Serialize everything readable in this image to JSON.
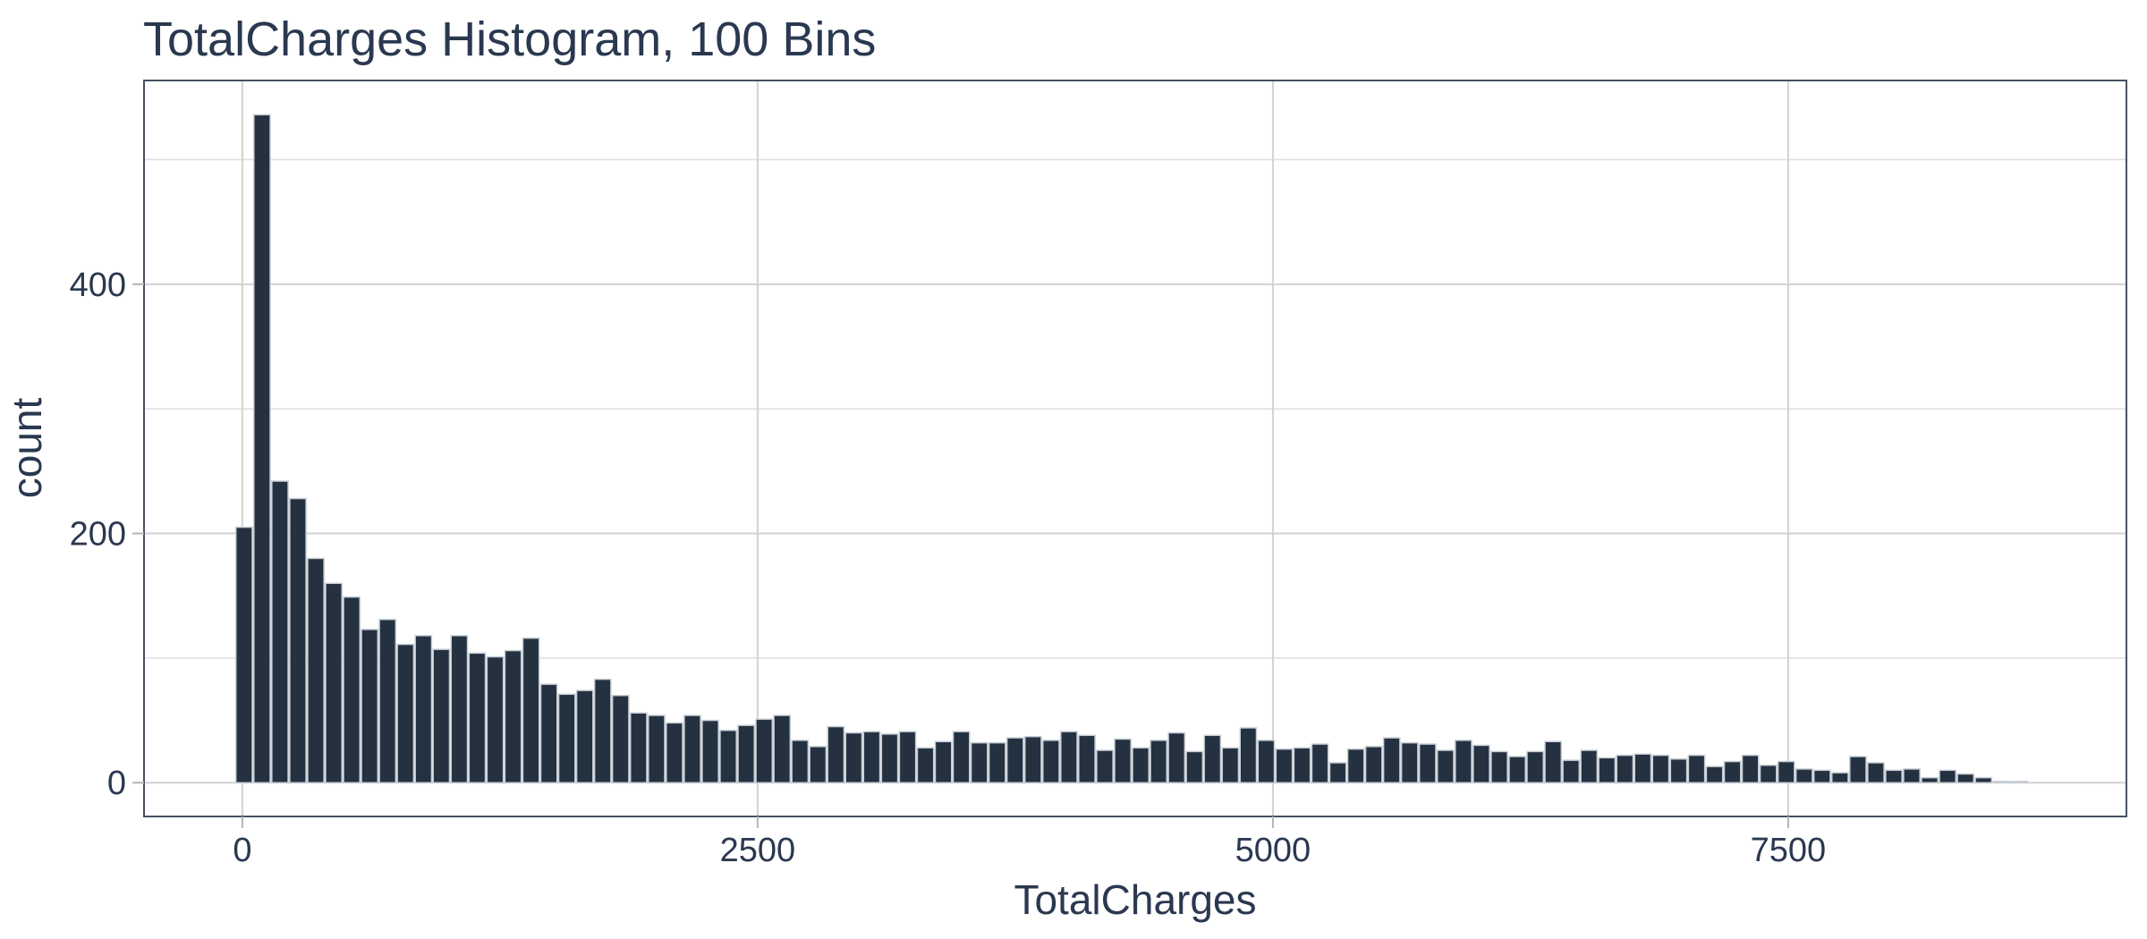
{
  "chart_data": {
    "type": "bar",
    "subtype": "histogram",
    "title": "TotalCharges Histogram, 100 Bins",
    "xlabel": "TotalCharges",
    "ylabel": "count",
    "x_tick_labels": [
      "0",
      "2500",
      "5000",
      "7500"
    ],
    "x_tick_values": [
      0,
      2500,
      5000,
      7500
    ],
    "y_tick_labels": [
      "0",
      "200",
      "400"
    ],
    "y_tick_values": [
      0,
      200,
      400
    ],
    "y_minor_values": [
      100,
      300,
      500
    ],
    "xlim": [
      -477,
      9141
    ],
    "ylim": [
      -27.1,
      563.5
    ],
    "grid": "on",
    "legend": "none",
    "bins": {
      "start": -35,
      "width": 87,
      "count": 100
    },
    "counts": [
      205,
      536,
      242,
      228,
      180,
      160,
      149,
      123,
      131,
      111,
      118,
      107,
      118,
      104,
      101,
      106,
      116,
      79,
      71,
      74,
      83,
      70,
      56,
      54,
      48,
      54,
      50,
      42,
      46,
      51,
      54,
      34,
      29,
      45,
      40,
      41,
      39,
      41,
      28,
      33,
      41,
      32,
      32,
      36,
      37,
      34,
      41,
      38,
      26,
      35,
      28,
      34,
      40,
      25,
      38,
      28,
      44,
      34,
      27,
      28,
      31,
      16,
      27,
      29,
      36,
      32,
      31,
      26,
      34,
      30,
      25,
      21,
      25,
      33,
      18,
      26,
      20,
      22,
      23,
      22,
      19,
      22,
      13,
      17,
      22,
      14,
      17,
      11,
      10,
      8,
      21,
      16,
      10,
      11,
      4,
      10,
      7,
      4,
      1,
      1
    ]
  },
  "colors": {
    "bar_fill": "#243140",
    "bar_stroke": "#c7cdd4",
    "text": "#2a3850",
    "grid_major": "#d2d2d2",
    "grid_minor": "#dfdfdf",
    "panel_border": "#47515f",
    "tick_mark": "#b0b5ba",
    "background": "#ffffff"
  }
}
